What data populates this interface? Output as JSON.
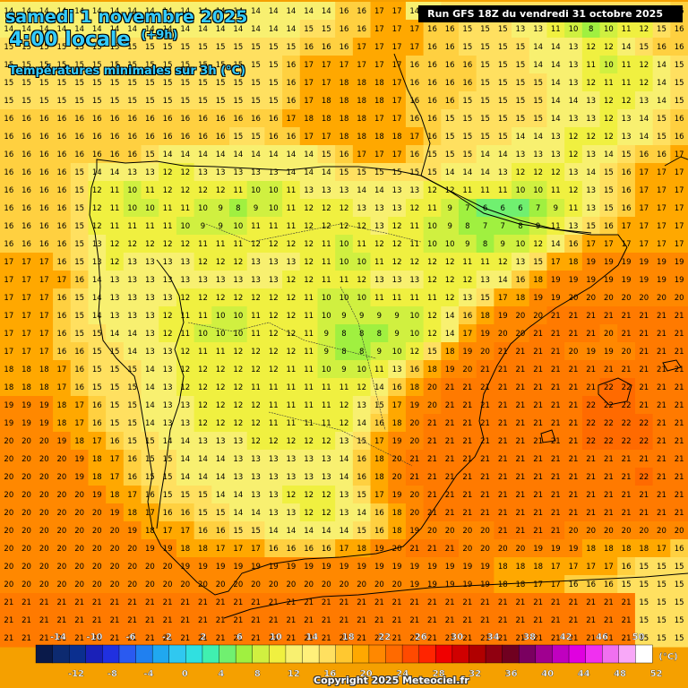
{
  "header": {
    "date_line": "samedi 1 novembre 2025",
    "time_line": "4:00 locale",
    "offset": "(+9h)",
    "field_title": "Températures minimales sur 3h (°C)",
    "run_info": "Run GFS 18Z du vendredi 31 octobre 2025"
  },
  "copyright": "Copyright 2025 Meteociel.fr",
  "legend": {
    "unit": "(°C)",
    "top_labels": [
      "-14",
      "-10",
      "-6",
      "-2",
      "2",
      "6",
      "10",
      "14",
      "18",
      "22",
      "26",
      "30",
      "34",
      "38",
      "42",
      "46",
      "50"
    ],
    "bottom_labels": [
      "-12",
      "-8",
      "-4",
      "0",
      "4",
      "8",
      "12",
      "16",
      "20",
      "24",
      "28",
      "32",
      "36",
      "40",
      "44",
      "48",
      "52"
    ],
    "colors": [
      "#0a1a4a",
      "#0d2a70",
      "#0b2f8f",
      "#1a20b8",
      "#2030e0",
      "#2a5af0",
      "#2080f0",
      "#20a8f0",
      "#30c8f0",
      "#30e0e0",
      "#40f0b0",
      "#70f070",
      "#a0f040",
      "#d0f040",
      "#f0f040",
      "#f8f070",
      "#fff07a",
      "#ffe060",
      "#ffc830",
      "#ffa800",
      "#ff8800",
      "#ff6a00",
      "#ff4a00",
      "#ff2400",
      "#f00000",
      "#d00000",
      "#b00000",
      "#900010",
      "#700020",
      "#7a0060",
      "#a00090",
      "#c000c0",
      "#e000e0",
      "#f030f0",
      "#f070f0",
      "#f8a8f8",
      "#ffffff"
    ]
  },
  "map_values": {
    "grid_origin": "approx",
    "rows": [
      "14 14 14 14 14 14 14 14 14 14 14 14 14 14 14 14 14 14 14 16 16 17 17 14 14 15 15 15 15 15 15 15 15 15 15 15 15 15 16",
      "14 14 14 14 14 14 14 14 14 14 14 14 14 14 14 14 14 15 15 16 16 17 17 17 16 16 15 15 15 13 13 11 10 8 10 11 12 15 16",
      "15 15 15 15 15 15 15 15 15 15 15 15 15 15 15 15 15 16 16 16 17 17 17 17 16 16 15 15 15 15 14 14 13 12 12 14 15 16 16",
      "15 15 15 15 15 15 15 15 15 15 15 15 15 15 15 15 16 17 17 17 17 17 17 16 16 16 16 15 15 15 14 14 13 11 10 11 12 14 15",
      "15 15 15 15 15 15 15 15 15 15 15 15 15 15 15 15 16 17 17 18 18 18 17 16 16 16 16 15 15 15 15 14 13 12 11 11 12 14 15",
      "15 15 15 15 15 15 15 15 15 15 15 15 15 15 15 15 16 17 18 18 18 18 17 16 16 16 15 15 15 15 15 14 14 13 12 12 13 14 15",
      "16 16 16 16 16 16 16 16 16 16 16 16 16 16 16 16 17 18 18 18 18 17 17 16 16 15 15 15 15 15 15 14 13 13 12 13 14 15 16",
      "16 16 16 16 16 16 16 16 16 16 16 16 16 15 15 16 16 17 17 18 18 18 18 17 16 15 15 15 15 14 14 13 12 12 12 13 14 15 16",
      "16 16 16 16 16 16 16 16 15 14 14 14 14 14 14 14 14 14 15 16 17 17 17 16 15 15 15 14 14 13 13 13 12 13 14 15 16 16 17",
      "16 16 16 16 15 14 14 13 13 12 12 13 13 13 13 13 14 14 14 15 15 15 15 15 15 14 14 14 13 12 12 12 13 14 15 16 17 17 17",
      "16 16 16 16 15 12 11 10 11 12 12 12 12 11 10 10 11 13 13 13 14 14 13 13 12 12 11 11 11 10 10 11 12 13 15 16 17 17 17",
      "16 16 16 16 15 12 11 10 10 11 11 10 9 8 9 10 11 12 12 12 13 13 13 12 11 9 7 6 6 6 7 9 11 13 15 16 17 17 17",
      "16 16 16 16 15 12 11 11 11 11 10 9 9 10 11 11 11 12 12 12 12 13 12 11 10 9 8 7 7 8 9 11 13 15 16 17 17 17 17",
      "16 16 16 16 15 13 12 12 12 12 12 11 11 11 12 12 12 12 11 10 11 12 12 11 10 10 9 8 9 10 12 14 16 17 17 17 17 17 17",
      "17 17 17 16 15 13 12 13 13 13 13 12 12 12 13 13 13 12 11 10 10 11 12 12 12 12 11 11 12 13 15 17 18 19 19 19 19 19 19",
      "17 17 17 17 16 14 13 13 13 13 13 13 13 13 13 13 12 12 11 11 12 13 13 13 12 12 12 13 14 16 18 19 19 19 19 19 19 19 19",
      "17 17 17 16 15 14 13 13 13 13 12 12 12 12 12 12 12 11 10 10 10 11 11 11 11 12 13 15 17 18 19 19 20 20 20 20 20 20 20",
      "17 17 17 16 15 14 13 13 13 12 11 11 10 10 11 12 12 11 10 9 9 9 9 10 12 14 16 18 19 20 20 21 21 21 21 21 21 21 21",
      "17 17 17 16 15 15 14 14 13 12 11 10 10 10 11 12 12 11 9 8 8 8 9 10 12 14 17 19 20 20 21 21 21 21 20 21 21 21 21",
      "17 17 17 16 16 15 15 14 13 13 12 11 11 12 12 12 12 11 9 8 8 9 10 12 15 18 19 20 21 21 21 21 20 19 19 20 21 21 21",
      "18 18 18 17 16 15 15 15 14 13 12 12 12 12 12 12 11 11 10 9 10 11 13 16 18 19 20 21 21 21 21 21 21 21 21 21 21 21 21",
      "18 18 18 17 16 15 15 15 14 13 12 12 12 12 11 11 11 11 11 11 12 14 16 18 20 21 21 21 21 21 21 21 21 21 22 22 21 21 21",
      "19 19 19 18 17 16 15 15 14 13 13 12 12 12 12 11 11 11 11 12 13 15 17 19 20 21 21 21 21 21 21 21 21 22 22 22 21 21 21",
      "19 19 19 18 17 16 15 15 14 13 13 12 12 12 12 11 11 11 11 12 14 16 18 20 21 21 21 21 21 21 21 21 21 22 22 22 22 21 21",
      "20 20 20 19 18 17 16 15 15 14 14 13 13 13 12 12 12 12 12 13 15 17 19 20 21 21 21 21 21 21 21 21 21 22 22 22 22 21 21",
      "20 20 20 20 19 18 17 16 15 15 14 14 14 13 13 13 13 13 13 14 16 18 20 21 21 21 21 21 21 21 21 21 21 21 21 21 21 21 21",
      "20 20 20 20 19 18 17 16 15 15 14 14 14 13 13 13 13 13 13 14 16 18 20 21 21 21 21 21 21 21 21 21 21 21 21 21 22 21 21",
      "20 20 20 20 20 19 18 17 16 15 15 15 14 14 13 13 12 12 12 13 15 17 19 20 21 21 21 21 21 21 21 21 21 21 21 21 21 21 21",
      "20 20 20 20 20 20 19 18 17 16 16 15 15 14 14 13 13 12 12 13 14 16 18 20 21 21 21 21 21 21 21 21 21 21 21 21 21 21 21",
      "20 20 20 20 20 20 20 19 18 17 17 16 16 15 15 14 14 14 14 14 15 16 18 19 20 20 20 20 21 21 21 21 20 20 20 20 20 20 20",
      "20 20 20 20 20 20 20 20 19 19 18 18 17 17 17 16 16 16 16 17 18 19 20 21 21 21 20 20 20 20 19 19 19 18 18 18 18 17 16",
      "20 20 20 20 20 20 20 20 20 20 19 19 19 19 19 19 19 19 19 19 19 19 19 19 19 19 19 19 18 18 18 17 17 17 17 16 15 15 15",
      "20 20 20 20 20 20 20 20 20 20 20 20 20 20 20 20 20 20 20 20 20 20 20 19 19 19 19 19 18 18 17 17 16 16 16 15 15 15 15",
      "21 21 21 21 21 21 21 21 21 21 21 21 21 21 21 21 21 21 21 21 21 21 21 21 21 21 21 21 21 21 21 21 21 21 21 21 15 15 15",
      "21 21 21 21 21 21 21 21 21 21 21 21 21 21 21 21 21 21 21 21 21 21 21 21 21 21 21 21 21 21 21 21 21 21 21 21 15 15 15",
      "21 21 21 21 21 21 21 21 21 21 21 21 21 21 21 21 21 21 21 21 21 21 21 21 21 21 21 21 21 21 21 21 21 21 21 21 15 15 15"
    ]
  }
}
